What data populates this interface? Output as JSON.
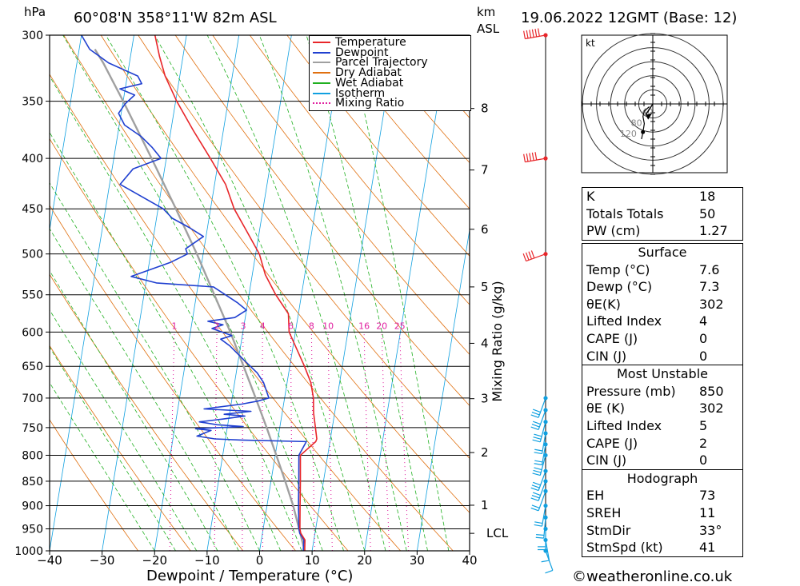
{
  "header": {
    "hpa_label": "hPa",
    "location": "60°08'N  358°11'W  82m  ASL",
    "km_label": "km",
    "asl_label": "ASL",
    "datetime": "19.06.2022  12GMT  (Base: 12)"
  },
  "legend": [
    {
      "label": "Temperature",
      "color": "#e8262a",
      "style": "solid"
    },
    {
      "label": "Dewpoint",
      "color": "#2040d0",
      "style": "solid"
    },
    {
      "label": "Parcel Trajectory",
      "color": "#a0a0a0",
      "style": "solid"
    },
    {
      "label": "Dry Adiabat",
      "color": "#e07010",
      "style": "solid"
    },
    {
      "label": "Wet Adiabat",
      "color": "#20b020",
      "style": "solid"
    },
    {
      "label": "Isotherm",
      "color": "#10a0e0",
      "style": "solid"
    },
    {
      "label": "Mixing Ratio",
      "color": "#e020a0",
      "style": "dotted"
    }
  ],
  "chart_data": {
    "type": "line",
    "title": "60°08'N  358°11'W  82m  ASL",
    "xlabel": "Dewpoint / Temperature (°C)",
    "ylabel": "hPa",
    "right_axis_label": "Mixing Ratio (g/kg)",
    "xlim": [
      -40,
      40
    ],
    "ylim": [
      1000,
      300
    ],
    "x_ticks": [
      -40,
      -30,
      -20,
      -10,
      0,
      10,
      20,
      30,
      40
    ],
    "x_tick_labels": [
      "−40",
      "−30",
      "−20",
      "−10",
      "0",
      "10",
      "20",
      "30",
      "40"
    ],
    "pressure_levels": [
      300,
      350,
      400,
      450,
      500,
      550,
      600,
      650,
      700,
      750,
      800,
      850,
      900,
      950,
      1000
    ],
    "km_ticks": [
      {
        "label": "8",
        "p": 356
      },
      {
        "label": "7",
        "p": 411
      },
      {
        "label": "6",
        "p": 472
      },
      {
        "label": "5",
        "p": 540
      },
      {
        "label": "4",
        "p": 616
      },
      {
        "label": "3",
        "p": 701
      },
      {
        "label": "2",
        "p": 795
      },
      {
        "label": "1",
        "p": 899
      },
      {
        "label": "LCL",
        "p": 960
      }
    ],
    "mixing_ratio_labels": [
      "1",
      "2",
      "3",
      "4",
      "6",
      "8",
      "10",
      "16",
      "20",
      "25"
    ],
    "mixing_ratio_values": [
      1,
      2,
      3,
      4,
      6,
      8,
      10,
      16,
      20,
      25
    ],
    "isotherms": [
      -120,
      -110,
      -100,
      -90,
      -80,
      -70,
      -60,
      -50,
      -40,
      -30,
      -20,
      -10,
      0,
      10,
      20,
      30,
      40
    ],
    "dry_adiabats_theta_k": [
      250,
      260,
      270,
      280,
      290,
      300,
      310,
      320,
      330,
      340,
      350,
      360,
      370,
      380,
      390,
      400,
      410,
      420,
      430,
      440,
      450
    ],
    "wet_adiabats_t1000_c": [
      -20,
      -16,
      -12,
      -8,
      -4,
      0,
      4,
      8,
      12,
      16,
      20,
      24,
      28,
      32,
      36
    ],
    "series": [
      {
        "name": "Temperature",
        "color": "#e8262a",
        "points": [
          [
            1000,
            8.6
          ],
          [
            975,
            8.3
          ],
          [
            960,
            7.3
          ],
          [
            950,
            7.0
          ],
          [
            900,
            6.3
          ],
          [
            850,
            5.6
          ],
          [
            800,
            4.8
          ],
          [
            775,
            7.3
          ],
          [
            770,
            7.4
          ],
          [
            750,
            6.8
          ],
          [
            725,
            6.0
          ],
          [
            700,
            5.5
          ],
          [
            675,
            4.5
          ],
          [
            650,
            2.8
          ],
          [
            600,
            -1.2
          ],
          [
            575,
            -1.9
          ],
          [
            550,
            -4.9
          ],
          [
            525,
            -7.5
          ],
          [
            500,
            -9.3
          ],
          [
            475,
            -12.3
          ],
          [
            450,
            -15.5
          ],
          [
            425,
            -17.9
          ],
          [
            400,
            -21.6
          ],
          [
            375,
            -25.7
          ],
          [
            350,
            -29.8
          ],
          [
            330,
            -32.8
          ],
          [
            315,
            -34.5
          ],
          [
            300,
            -36.0
          ]
        ]
      },
      {
        "name": "Dewpoint",
        "color": "#2040d0",
        "points": [
          [
            1000,
            8.3
          ],
          [
            975,
            8.1
          ],
          [
            960,
            7.1
          ],
          [
            950,
            6.8
          ],
          [
            900,
            6.0
          ],
          [
            850,
            5.3
          ],
          [
            800,
            4.5
          ],
          [
            775,
            5.5
          ],
          [
            772,
            -7.0
          ],
          [
            770,
            -12.0
          ],
          [
            765,
            -15.5
          ],
          [
            755,
            -13.0
          ],
          [
            752,
            -16.0
          ],
          [
            748,
            -7.0
          ],
          [
            745,
            -12.0
          ],
          [
            740,
            -15.5
          ],
          [
            735,
            -11.0
          ],
          [
            730,
            -7.0
          ],
          [
            727,
            -11.0
          ],
          [
            722,
            -6.0
          ],
          [
            718,
            -15.0
          ],
          [
            710,
            -8.0
          ],
          [
            705,
            -5.0
          ],
          [
            700,
            -3.0
          ],
          [
            675,
            -4.5
          ],
          [
            660,
            -6.0
          ],
          [
            640,
            -9.0
          ],
          [
            620,
            -12.0
          ],
          [
            610,
            -14.0
          ],
          [
            605,
            -12.0
          ],
          [
            595,
            -16.0
          ],
          [
            590,
            -14.0
          ],
          [
            585,
            -17.0
          ],
          [
            580,
            -12.0
          ],
          [
            570,
            -10.0
          ],
          [
            560,
            -12.0
          ],
          [
            540,
            -17.0
          ],
          [
            535,
            -28.0
          ],
          [
            527,
            -33.0
          ],
          [
            510,
            -26.0
          ],
          [
            500,
            -23.0
          ],
          [
            494,
            -23.5
          ],
          [
            480,
            -20.5
          ],
          [
            470,
            -23.5
          ],
          [
            460,
            -27.0
          ],
          [
            450,
            -29.0
          ],
          [
            425,
            -38.0
          ],
          [
            410,
            -36.0
          ],
          [
            400,
            -31.0
          ],
          [
            390,
            -33.0
          ],
          [
            380,
            -35.5
          ],
          [
            370,
            -39.0
          ],
          [
            360,
            -40.5
          ],
          [
            352,
            -39.5
          ],
          [
            345,
            -38.0
          ],
          [
            340,
            -41.0
          ],
          [
            336,
            -37.0
          ],
          [
            330,
            -38.0
          ],
          [
            320,
            -44.0
          ],
          [
            310,
            -48.0
          ],
          [
            300,
            -50.0
          ]
        ]
      },
      {
        "name": "Parcel Trajectory",
        "color": "#a0a0a0",
        "points": [
          [
            1000,
            8.6
          ],
          [
            960,
            7.2
          ],
          [
            900,
            5.0
          ],
          [
            850,
            2.7
          ],
          [
            800,
            0.2
          ],
          [
            750,
            -2.5
          ],
          [
            700,
            -5.5
          ],
          [
            650,
            -8.8
          ],
          [
            600,
            -12.4
          ],
          [
            550,
            -16.6
          ],
          [
            500,
            -21.2
          ],
          [
            450,
            -26.6
          ],
          [
            400,
            -32.8
          ],
          [
            350,
            -40.0
          ],
          [
            320,
            -45.0
          ],
          [
            310,
            -47.0
          ]
        ]
      }
    ]
  },
  "hodograph": {
    "unit_label": "kt",
    "ring_labels": [
      "40",
      "80",
      "120"
    ],
    "points_kt": [
      [
        -5,
        -4
      ],
      [
        -12,
        -10
      ],
      [
        -14,
        -18
      ],
      [
        -12,
        -28
      ],
      [
        -14,
        -40
      ],
      [
        -16,
        -50
      ]
    ],
    "storm_motion": {
      "dir_deg": 33,
      "speed_kt": 41
    }
  },
  "wind_profile": {
    "levels": [
      {
        "p": 300,
        "dir": 260,
        "spd": 55
      },
      {
        "p": 400,
        "dir": 260,
        "spd": 50
      },
      {
        "p": 500,
        "dir": 250,
        "spd": 40
      },
      {
        "p": 700,
        "dir": 200,
        "spd": 30
      },
      {
        "p": 720,
        "dir": 200,
        "spd": 25
      },
      {
        "p": 740,
        "dir": 195,
        "spd": 25
      },
      {
        "p": 760,
        "dir": 190,
        "spd": 20
      },
      {
        "p": 780,
        "dir": 190,
        "spd": 20
      },
      {
        "p": 800,
        "dir": 195,
        "spd": 25
      },
      {
        "p": 830,
        "dir": 200,
        "spd": 25
      },
      {
        "p": 850,
        "dir": 200,
        "spd": 25
      },
      {
        "p": 870,
        "dir": 200,
        "spd": 20
      },
      {
        "p": 900,
        "dir": 190,
        "spd": 20
      },
      {
        "p": 925,
        "dir": 185,
        "spd": 15
      },
      {
        "p": 950,
        "dir": 180,
        "spd": 15
      },
      {
        "p": 975,
        "dir": 170,
        "spd": 10
      },
      {
        "p": 1000,
        "dir": 160,
        "spd": 5
      }
    ]
  },
  "indices": [
    {
      "label": "K",
      "value": "18"
    },
    {
      "label": "Totals Totals",
      "value": "50"
    },
    {
      "label": "PW (cm)",
      "value": "1.27"
    }
  ],
  "surface": {
    "title": "Surface",
    "rows": [
      {
        "label": "Temp (°C)",
        "value": "7.6"
      },
      {
        "label": "Dewp (°C)",
        "value": "7.3"
      },
      {
        "label": "θE(K)",
        "value": "302"
      },
      {
        "label": "Lifted Index",
        "value": "4"
      },
      {
        "label": "CAPE (J)",
        "value": "0"
      },
      {
        "label": "CIN (J)",
        "value": "0"
      }
    ]
  },
  "most_unstable": {
    "title": "Most Unstable",
    "rows": [
      {
        "label": "Pressure (mb)",
        "value": "850"
      },
      {
        "label": "θE (K)",
        "value": "302"
      },
      {
        "label": "Lifted Index",
        "value": "5"
      },
      {
        "label": "CAPE (J)",
        "value": "2"
      },
      {
        "label": "CIN (J)",
        "value": "0"
      }
    ]
  },
  "hodo_stats": {
    "title": "Hodograph",
    "rows": [
      {
        "label": "EH",
        "value": "73"
      },
      {
        "label": "SREH",
        "value": "11"
      },
      {
        "label": "StmDir",
        "value": "33°"
      },
      {
        "label": "StmSpd (kt)",
        "value": "41"
      }
    ]
  },
  "footer": {
    "copyright": "©weatheronline.co.uk"
  },
  "colors": {
    "temperature": "#e8262a",
    "dewpoint": "#2040d0",
    "parcel": "#a0a0a0",
    "dry": "#e07010",
    "wet": "#20b020",
    "iso": "#10a0e0",
    "mix": "#e020a0",
    "wind_upper": "#e8262a",
    "wind_lower": "#10a0e0"
  }
}
